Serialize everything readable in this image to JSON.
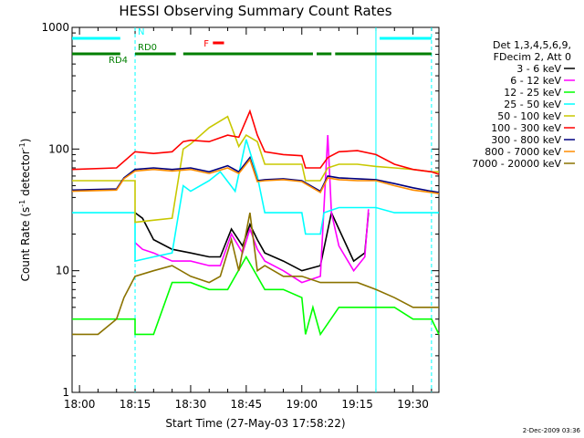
{
  "chart_data": {
    "type": "line",
    "title": "HESSI Observing Summary Count Rates",
    "xlabel": "Start Time (27-May-03 17:58:22)",
    "ylabel": "Count Rate (s",
    "ylabel_sup": "-1",
    "ylabel_mid": " detector",
    "ylabel_end": ")",
    "y_scale": "log",
    "ylim": [
      1,
      1000
    ],
    "xlim": [
      "17:58",
      "19:37"
    ],
    "x_ticks": [
      "18:00",
      "18:15",
      "18:30",
      "18:45",
      "19:00",
      "19:15",
      "19:30"
    ],
    "y_ticks": [
      "1",
      "10",
      "100",
      "1000"
    ],
    "footnote": "2-Dec-2009 03:36",
    "legend_header": [
      "Det 1,3,4,5,6,9,",
      "FDecim 2, Att 0"
    ],
    "series": [
      {
        "name": "3 - 6 keV",
        "color": "#000000",
        "times": [
          "18:15",
          "18:17",
          "18:20",
          "18:25",
          "18:30",
          "18:35",
          "18:38",
          "18:41",
          "18:44",
          "18:46",
          "18:48",
          "18:50",
          "18:55",
          "19:00",
          "19:05",
          "19:08",
          "19:10",
          "19:14",
          "19:17",
          "19:18"
        ],
        "values": [
          30,
          27,
          18,
          15,
          14,
          13,
          13,
          22,
          16,
          24,
          18,
          14,
          12,
          10,
          11,
          30,
          22,
          12,
          14,
          30
        ]
      },
      {
        "name": "6 - 12 keV",
        "color": "#ff00ff",
        "times": [
          "18:15",
          "18:17",
          "18:20",
          "18:25",
          "18:30",
          "18:35",
          "18:38",
          "18:41",
          "18:44",
          "18:46",
          "18:48",
          "18:50",
          "18:55",
          "19:00",
          "19:05",
          "19:07",
          "19:08",
          "19:10",
          "19:14",
          "19:17",
          "19:18"
        ],
        "values": [
          17,
          15,
          14,
          12,
          12,
          11,
          11,
          20,
          14,
          22,
          15,
          12,
          10,
          8,
          9,
          130,
          30,
          16,
          10,
          13,
          32
        ]
      },
      {
        "name": "12 - 25 keV",
        "color": "#00ff00",
        "times": [
          "17:58",
          "18:15",
          "18:15",
          "18:20",
          "18:25",
          "18:30",
          "18:35",
          "18:40",
          "18:45",
          "18:50",
          "18:55",
          "19:00",
          "19:01",
          "19:03",
          "19:05",
          "19:10",
          "19:15",
          "19:20",
          "19:25",
          "19:30",
          "19:35",
          "19:37"
        ],
        "values": [
          4,
          4,
          3,
          3,
          8,
          8,
          7,
          7,
          13,
          7,
          7,
          6,
          3,
          5,
          3,
          5,
          5,
          5,
          5,
          4,
          4,
          3
        ]
      },
      {
        "name": "25 - 50 keV",
        "color": "#00ffff",
        "times": [
          "17:58",
          "18:10",
          "18:15",
          "18:15",
          "18:20",
          "18:25",
          "18:28",
          "18:30",
          "18:35",
          "18:38",
          "18:42",
          "18:45",
          "18:48",
          "18:50",
          "18:55",
          "19:00",
          "19:01",
          "19:05",
          "19:06",
          "19:10",
          "19:15",
          "19:20",
          "19:25",
          "19:30",
          "19:35",
          "19:37"
        ],
        "values": [
          30,
          30,
          30,
          12,
          13,
          14,
          50,
          45,
          55,
          65,
          45,
          120,
          60,
          30,
          30,
          30,
          20,
          20,
          30,
          33,
          33,
          33,
          30,
          30,
          30,
          30
        ]
      },
      {
        "name": "50 - 100 keV",
        "color": "#c8c800",
        "times": [
          "17:58",
          "18:10",
          "18:15",
          "18:15",
          "18:20",
          "18:25",
          "18:28",
          "18:30",
          "18:35",
          "18:40",
          "18:43",
          "18:45",
          "18:48",
          "18:50",
          "18:55",
          "19:00",
          "19:01",
          "19:05",
          "19:07",
          "19:10",
          "19:15",
          "19:20",
          "19:25",
          "19:30",
          "19:35",
          "19:37"
        ],
        "values": [
          55,
          55,
          55,
          25,
          26,
          27,
          100,
          110,
          150,
          185,
          105,
          130,
          115,
          75,
          75,
          75,
          55,
          55,
          70,
          75,
          75,
          72,
          70,
          68,
          65,
          65
        ]
      },
      {
        "name": "100 - 300 keV",
        "color": "#ff0000",
        "times": [
          "17:58",
          "18:10",
          "18:15",
          "18:20",
          "18:25",
          "18:28",
          "18:30",
          "18:35",
          "18:40",
          "18:43",
          "18:46",
          "18:48",
          "18:50",
          "18:55",
          "19:00",
          "19:01",
          "19:05",
          "19:07",
          "19:10",
          "19:15",
          "19:20",
          "19:25",
          "19:30",
          "19:35",
          "19:37"
        ],
        "values": [
          68,
          70,
          95,
          92,
          95,
          115,
          118,
          115,
          130,
          125,
          205,
          130,
          95,
          90,
          88,
          70,
          70,
          85,
          95,
          97,
          90,
          75,
          68,
          65,
          62
        ]
      },
      {
        "name": "300 - 800 keV",
        "color": "#000080",
        "times": [
          "17:58",
          "18:10",
          "18:12",
          "18:15",
          "18:20",
          "18:25",
          "18:30",
          "18:35",
          "18:40",
          "18:43",
          "18:46",
          "18:48",
          "18:50",
          "18:55",
          "19:00",
          "19:05",
          "19:07",
          "19:10",
          "19:15",
          "19:20",
          "19:25",
          "19:30",
          "19:35",
          "19:37"
        ],
        "values": [
          46,
          47,
          58,
          68,
          70,
          68,
          70,
          65,
          73,
          65,
          85,
          55,
          56,
          57,
          55,
          45,
          60,
          58,
          57,
          56,
          52,
          48,
          45,
          44
        ]
      },
      {
        "name": "800 - 7000 keV",
        "color": "#ff8c00",
        "times": [
          "17:58",
          "18:10",
          "18:12",
          "18:15",
          "18:20",
          "18:25",
          "18:30",
          "18:35",
          "18:40",
          "18:43",
          "18:46",
          "18:48",
          "18:50",
          "18:55",
          "19:00",
          "19:05",
          "19:07",
          "19:10",
          "19:15",
          "19:20",
          "19:25",
          "19:30",
          "19:35",
          "19:37"
        ],
        "values": [
          45,
          46,
          57,
          66,
          68,
          66,
          68,
          63,
          70,
          63,
          82,
          54,
          55,
          56,
          54,
          44,
          58,
          56,
          55,
          55,
          50,
          46,
          44,
          43
        ]
      },
      {
        "name": "7000 - 20000 keV",
        "color": "#8b7300",
        "times": [
          "17:58",
          "18:05",
          "18:10",
          "18:12",
          "18:15",
          "18:20",
          "18:25",
          "18:30",
          "18:35",
          "18:38",
          "18:41",
          "18:43",
          "18:46",
          "18:48",
          "18:50",
          "18:55",
          "19:00",
          "19:05",
          "19:10",
          "19:15",
          "19:20",
          "19:25",
          "19:30",
          "19:35",
          "19:37"
        ],
        "values": [
          3,
          3,
          4,
          6,
          9,
          10,
          11,
          9,
          8,
          9,
          18,
          10,
          30,
          10,
          11,
          9,
          9,
          8,
          8,
          8,
          7,
          6,
          5,
          5,
          5
        ]
      }
    ],
    "status_bars": [
      {
        "label": "",
        "color": "#00ffff",
        "start": "17:58",
        "end": "18:11"
      },
      {
        "label": "N",
        "color": "#00ffff",
        "start": "18:15",
        "end": "18:15"
      },
      {
        "label": "",
        "color": "#00ffff",
        "start": "19:21",
        "end": "19:35"
      },
      {
        "label": "RD4",
        "color": "#007f00",
        "start": "17:58",
        "end": "18:11"
      },
      {
        "label": "RD0",
        "color": "#007f00",
        "start": "18:15",
        "end": "18:26"
      },
      {
        "label": "",
        "color": "#007f00",
        "start": "18:28",
        "end": "19:03"
      },
      {
        "label": "",
        "color": "#007f00",
        "start": "19:04",
        "end": "19:08"
      },
      {
        "label": "",
        "color": "#007f00",
        "start": "19:09",
        "end": "19:35"
      },
      {
        "label": "F",
        "color": "#ff0000",
        "start": "18:36",
        "end": "18:39"
      }
    ],
    "vertical_markers": [
      {
        "time": "18:15",
        "style": "dashed"
      },
      {
        "time": "19:20",
        "style": "solid"
      },
      {
        "time": "19:35",
        "style": "dashed"
      }
    ]
  }
}
